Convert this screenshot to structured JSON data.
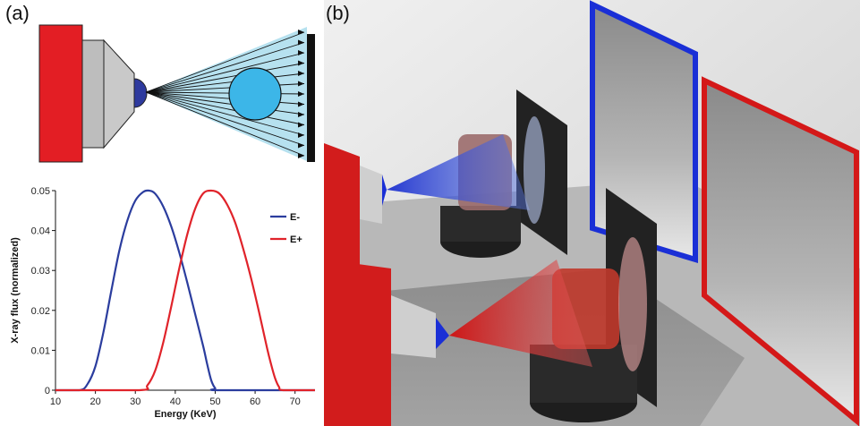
{
  "panels": {
    "a_label": "(a)",
    "b_label": "(b)"
  },
  "colors": {
    "low_energy": "#2b3d9e",
    "high_energy": "#e0232a",
    "beam": "#a9dcec",
    "object": "#3cb6e8",
    "source_body": "#e31e24"
  },
  "chart_data": {
    "type": "line",
    "xlabel": "Energy (KeV)",
    "ylabel": "X-ray flux (normalized)",
    "xlim": [
      10,
      75
    ],
    "ylim": [
      0,
      0.05
    ],
    "x_ticks": [
      "10",
      "20",
      "30",
      "40",
      "50",
      "60",
      "70"
    ],
    "y_ticks": [
      "0",
      "0.01",
      "0.02",
      "0.03",
      "0.04",
      "0.05"
    ],
    "legend_position": "top-right",
    "series": [
      {
        "name": "E-",
        "color": "#2b3d9e",
        "x": [
          10,
          16,
          18,
          20,
          22,
          24,
          26,
          28,
          30,
          32,
          33.5,
          35,
          37,
          39,
          41,
          43,
          45,
          47,
          48,
          49,
          50,
          51,
          75
        ],
        "y": [
          0,
          0,
          0.0015,
          0.006,
          0.0145,
          0.025,
          0.035,
          0.0425,
          0.0475,
          0.0497,
          0.05,
          0.0492,
          0.046,
          0.041,
          0.0345,
          0.027,
          0.019,
          0.011,
          0.0065,
          0.0025,
          0.0005,
          0,
          0
        ]
      },
      {
        "name": "E+",
        "color": "#e0232a",
        "x": [
          10,
          31,
          33,
          35,
          37,
          39,
          41,
          43,
          45,
          47,
          49,
          51,
          53,
          55,
          57,
          59,
          61,
          63,
          64,
          65,
          66,
          67,
          75
        ],
        "y": [
          0,
          0,
          0.0012,
          0.005,
          0.012,
          0.021,
          0.0305,
          0.039,
          0.0455,
          0.0493,
          0.05,
          0.0493,
          0.0465,
          0.042,
          0.0355,
          0.028,
          0.0195,
          0.0105,
          0.0065,
          0.003,
          0.0008,
          0,
          0
        ]
      }
    ]
  }
}
